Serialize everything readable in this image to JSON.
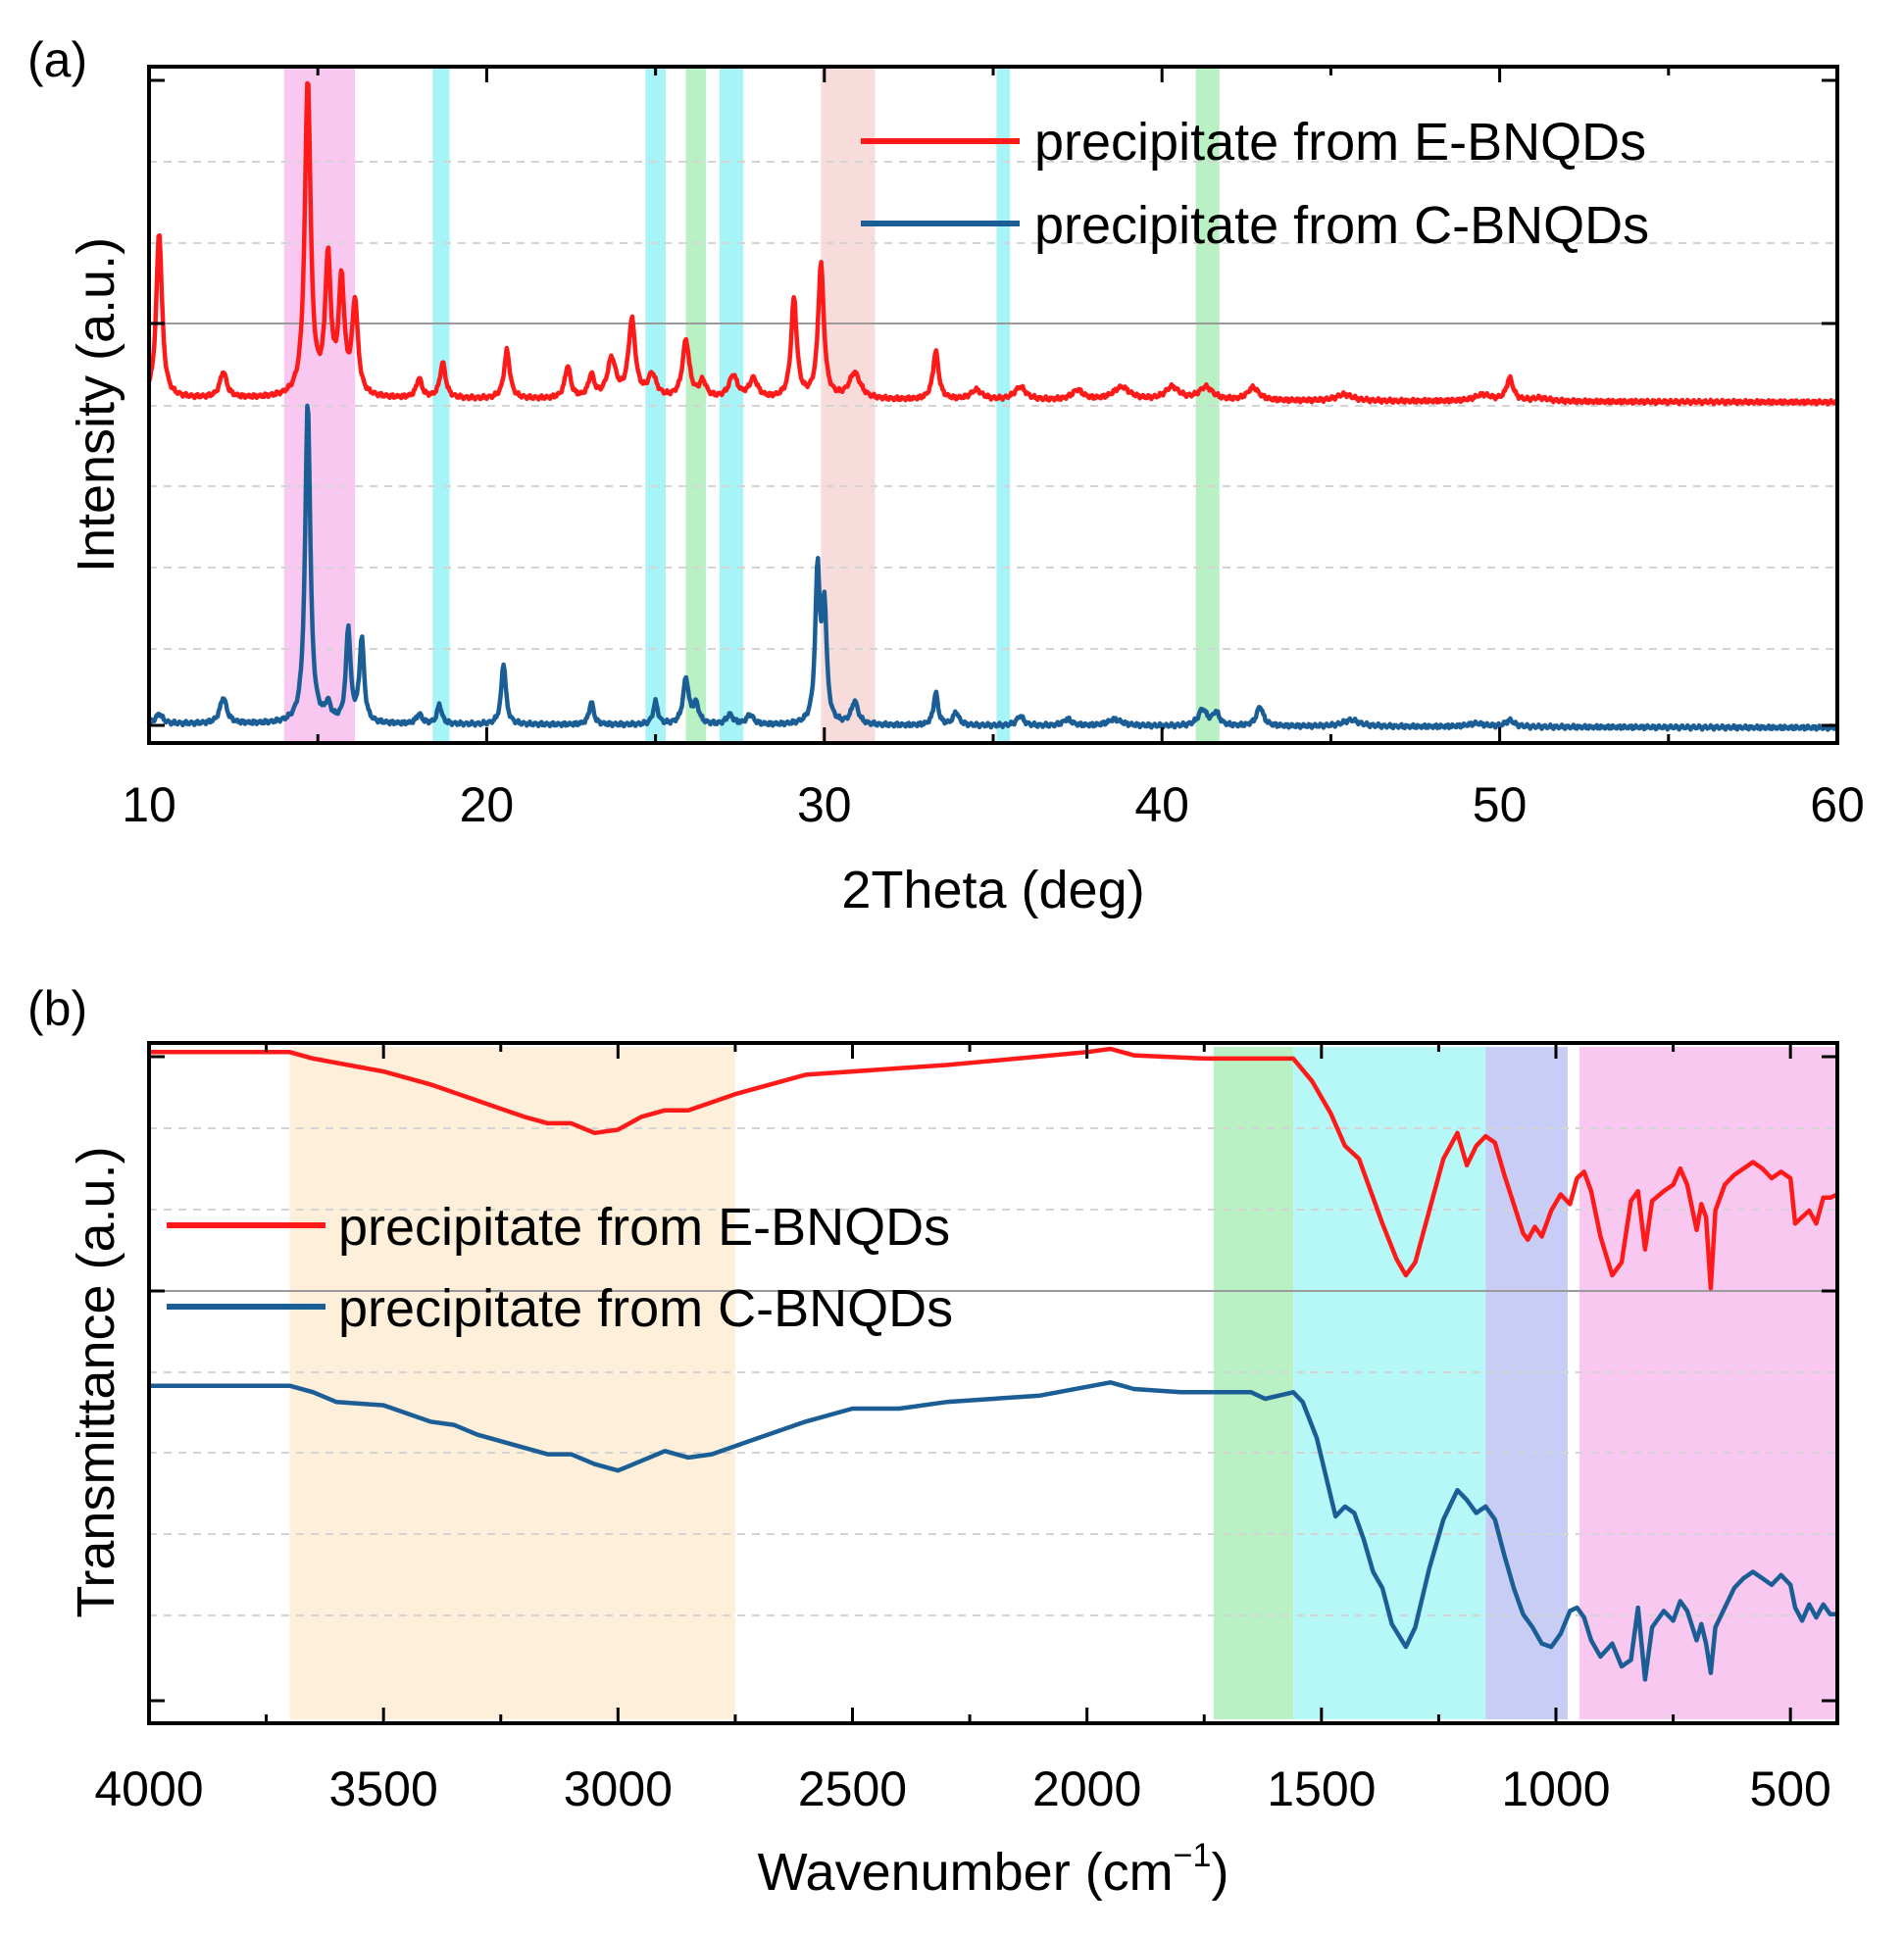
{
  "chart_data": [
    {
      "panel": "(a)",
      "type": "line",
      "xlabel": "2Theta (deg)",
      "ylabel": "Intensity (a.u.)",
      "xlim": [
        10,
        60
      ],
      "xticks": [
        10,
        20,
        30,
        40,
        50,
        60
      ],
      "grid": "dashed horizontal",
      "legend_position": "top-right",
      "highlight_bands": [
        {
          "from": 14.0,
          "to": 16.1,
          "color": "#f9c8f0"
        },
        {
          "from": 18.4,
          "to": 18.9,
          "color": "#a6f4f8"
        },
        {
          "from": 24.7,
          "to": 25.3,
          "color": "#a6f4f8"
        },
        {
          "from": 25.9,
          "to": 26.5,
          "color": "#b9f0c4"
        },
        {
          "from": 26.9,
          "to": 27.6,
          "color": "#a6f4f8"
        },
        {
          "from": 29.9,
          "to": 31.5,
          "color": "#f8dcdc"
        },
        {
          "from": 35.1,
          "to": 35.5,
          "color": "#a6f4f8"
        },
        {
          "from": 41.0,
          "to": 41.7,
          "color": "#b9f0c4"
        }
      ],
      "series": [
        {
          "name": "precipitate from E-BNQDs",
          "color": "#ff1a1a",
          "baseline": 0.02,
          "peaks": [
            [
              10.3,
              0.52,
              0.1
            ],
            [
              12.2,
              0.08,
              0.12
            ],
            [
              14.7,
              1.0,
              0.1
            ],
            [
              15.3,
              0.42,
              0.1
            ],
            [
              15.7,
              0.35,
              0.1
            ],
            [
              16.1,
              0.29,
              0.1
            ],
            [
              18.0,
              0.06,
              0.1
            ],
            [
              18.7,
              0.11,
              0.1
            ],
            [
              20.6,
              0.15,
              0.1
            ],
            [
              22.4,
              0.1,
              0.1
            ],
            [
              23.1,
              0.07,
              0.1
            ],
            [
              23.7,
              0.12,
              0.15
            ],
            [
              24.3,
              0.24,
              0.12
            ],
            [
              24.9,
              0.07,
              0.15
            ],
            [
              25.9,
              0.18,
              0.12
            ],
            [
              26.4,
              0.05,
              0.12
            ],
            [
              27.3,
              0.07,
              0.15
            ],
            [
              27.9,
              0.06,
              0.15
            ],
            [
              29.1,
              0.31,
              0.1
            ],
            [
              29.9,
              0.42,
              0.1
            ],
            [
              30.9,
              0.08,
              0.2
            ],
            [
              33.3,
              0.15,
              0.1
            ],
            [
              34.5,
              0.03,
              0.2
            ],
            [
              35.8,
              0.04,
              0.2
            ],
            [
              37.5,
              0.03,
              0.2
            ],
            [
              38.8,
              0.04,
              0.3
            ],
            [
              40.3,
              0.04,
              0.25
            ],
            [
              41.3,
              0.04,
              0.25
            ],
            [
              42.7,
              0.04,
              0.2
            ],
            [
              45.4,
              0.02,
              0.3
            ],
            [
              49.5,
              0.02,
              0.3
            ],
            [
              50.3,
              0.07,
              0.12
            ],
            [
              51.2,
              0.01,
              0.3
            ]
          ]
        },
        {
          "name": "precipitate from C-BNQDs",
          "color": "#1b5e96",
          "baseline": 0.02,
          "peaks": [
            [
              10.3,
              0.03,
              0.12
            ],
            [
              12.2,
              0.08,
              0.12
            ],
            [
              14.7,
              1.0,
              0.09
            ],
            [
              15.3,
              0.05,
              0.1
            ],
            [
              15.9,
              0.29,
              0.08
            ],
            [
              16.3,
              0.26,
              0.08
            ],
            [
              18.0,
              0.03,
              0.1
            ],
            [
              18.6,
              0.06,
              0.08
            ],
            [
              20.5,
              0.19,
              0.08
            ],
            [
              23.1,
              0.07,
              0.08
            ],
            [
              25.0,
              0.07,
              0.08
            ],
            [
              25.9,
              0.14,
              0.1
            ],
            [
              26.2,
              0.06,
              0.1
            ],
            [
              27.2,
              0.03,
              0.12
            ],
            [
              27.8,
              0.03,
              0.12
            ],
            [
              29.8,
              0.47,
              0.08
            ],
            [
              30.0,
              0.35,
              0.08
            ],
            [
              30.9,
              0.07,
              0.12
            ],
            [
              33.3,
              0.1,
              0.08
            ],
            [
              33.9,
              0.04,
              0.1
            ],
            [
              35.8,
              0.03,
              0.12
            ],
            [
              37.2,
              0.02,
              0.15
            ],
            [
              38.6,
              0.02,
              0.25
            ],
            [
              41.2,
              0.05,
              0.15
            ],
            [
              41.6,
              0.04,
              0.12
            ],
            [
              42.9,
              0.06,
              0.12
            ],
            [
              45.6,
              0.02,
              0.3
            ],
            [
              49.3,
              0.01,
              0.3
            ],
            [
              50.3,
              0.02,
              0.15
            ]
          ]
        }
      ]
    },
    {
      "panel": "(b)",
      "type": "line",
      "xlabel": "Wavenumber (cm",
      "xlabel_superscript": "−1",
      "xlabel_close": ")",
      "ylabel": "Transmittance (a.u.)",
      "xlim": [
        4000,
        400
      ],
      "xticks": [
        4000,
        3500,
        3000,
        2500,
        2000,
        1500,
        1000,
        500
      ],
      "grid": "dashed horizontal",
      "legend_position": "middle-left",
      "highlight_bands": [
        {
          "from": 3700,
          "to": 2750,
          "color": "#fdefd9"
        },
        {
          "from": 1730,
          "to": 1560,
          "color": "#b9f0c4"
        },
        {
          "from": 1560,
          "to": 1150,
          "color": "#b6f8f8"
        },
        {
          "from": 1150,
          "to": 975,
          "color": "#c8cdf6"
        },
        {
          "from": 950,
          "to": 400,
          "color": "#f9c8f0"
        }
      ],
      "series": [
        {
          "name": "precipitate from E-BNQDs",
          "color": "#ff1a1a",
          "points": [
            [
              4000,
              0.99
            ],
            [
              3700,
              0.99
            ],
            [
              3650,
              0.97
            ],
            [
              3500,
              0.93
            ],
            [
              3400,
              0.89
            ],
            [
              3300,
              0.84
            ],
            [
              3200,
              0.79
            ],
            [
              3150,
              0.77
            ],
            [
              3100,
              0.77
            ],
            [
              3050,
              0.74
            ],
            [
              3000,
              0.75
            ],
            [
              2950,
              0.79
            ],
            [
              2900,
              0.81
            ],
            [
              2850,
              0.81
            ],
            [
              2750,
              0.86
            ],
            [
              2600,
              0.92
            ],
            [
              2400,
              0.94
            ],
            [
              2300,
              0.95
            ],
            [
              2000,
              0.99
            ],
            [
              1950,
              1.0
            ],
            [
              1900,
              0.98
            ],
            [
              1750,
              0.97
            ],
            [
              1650,
              0.97
            ],
            [
              1600,
              0.97
            ],
            [
              1560,
              0.97
            ],
            [
              1520,
              0.9
            ],
            [
              1480,
              0.8
            ],
            [
              1450,
              0.7
            ],
            [
              1420,
              0.66
            ],
            [
              1400,
              0.58
            ],
            [
              1370,
              0.46
            ],
            [
              1340,
              0.35
            ],
            [
              1320,
              0.3
            ],
            [
              1300,
              0.34
            ],
            [
              1270,
              0.5
            ],
            [
              1240,
              0.66
            ],
            [
              1210,
              0.74
            ],
            [
              1190,
              0.64
            ],
            [
              1170,
              0.7
            ],
            [
              1150,
              0.73
            ],
            [
              1130,
              0.71
            ],
            [
              1110,
              0.61
            ],
            [
              1090,
              0.52
            ],
            [
              1070,
              0.43
            ],
            [
              1060,
              0.41
            ],
            [
              1045,
              0.45
            ],
            [
              1030,
              0.42
            ],
            [
              1010,
              0.5
            ],
            [
              990,
              0.55
            ],
            [
              970,
              0.52
            ],
            [
              955,
              0.6
            ],
            [
              940,
              0.62
            ],
            [
              925,
              0.56
            ],
            [
              905,
              0.42
            ],
            [
              880,
              0.3
            ],
            [
              860,
              0.34
            ],
            [
              840,
              0.53
            ],
            [
              825,
              0.56
            ],
            [
              810,
              0.38
            ],
            [
              795,
              0.53
            ],
            [
              770,
              0.56
            ],
            [
              750,
              0.58
            ],
            [
              735,
              0.63
            ],
            [
              720,
              0.58
            ],
            [
              700,
              0.44
            ],
            [
              690,
              0.52
            ],
            [
              680,
              0.48
            ],
            [
              670,
              0.26
            ],
            [
              660,
              0.5
            ],
            [
              640,
              0.58
            ],
            [
              620,
              0.61
            ],
            [
              600,
              0.63
            ],
            [
              580,
              0.65
            ],
            [
              560,
              0.63
            ],
            [
              540,
              0.6
            ],
            [
              520,
              0.62
            ],
            [
              500,
              0.6
            ],
            [
              490,
              0.46
            ],
            [
              475,
              0.48
            ],
            [
              460,
              0.5
            ],
            [
              445,
              0.46
            ],
            [
              430,
              0.54
            ],
            [
              415,
              0.54
            ],
            [
              400,
              0.55
            ]
          ]
        },
        {
          "name": "precipitate from C-BNQDs",
          "color": "#1b5e96",
          "points": [
            [
              4000,
              0.98
            ],
            [
              3700,
              0.98
            ],
            [
              3650,
              0.96
            ],
            [
              3600,
              0.93
            ],
            [
              3500,
              0.92
            ],
            [
              3400,
              0.87
            ],
            [
              3350,
              0.86
            ],
            [
              3300,
              0.83
            ],
            [
              3200,
              0.79
            ],
            [
              3150,
              0.77
            ],
            [
              3100,
              0.77
            ],
            [
              3050,
              0.74
            ],
            [
              3000,
              0.72
            ],
            [
              2950,
              0.75
            ],
            [
              2900,
              0.78
            ],
            [
              2850,
              0.76
            ],
            [
              2800,
              0.77
            ],
            [
              2700,
              0.82
            ],
            [
              2600,
              0.87
            ],
            [
              2500,
              0.91
            ],
            [
              2400,
              0.91
            ],
            [
              2300,
              0.93
            ],
            [
              2100,
              0.95
            ],
            [
              1950,
              0.99
            ],
            [
              1900,
              0.97
            ],
            [
              1800,
              0.96
            ],
            [
              1700,
              0.96
            ],
            [
              1650,
              0.96
            ],
            [
              1620,
              0.94
            ],
            [
              1560,
              0.96
            ],
            [
              1540,
              0.93
            ],
            [
              1510,
              0.82
            ],
            [
              1490,
              0.7
            ],
            [
              1470,
              0.58
            ],
            [
              1450,
              0.61
            ],
            [
              1430,
              0.59
            ],
            [
              1410,
              0.51
            ],
            [
              1390,
              0.41
            ],
            [
              1370,
              0.36
            ],
            [
              1350,
              0.25
            ],
            [
              1320,
              0.18
            ],
            [
              1300,
              0.24
            ],
            [
              1270,
              0.42
            ],
            [
              1240,
              0.57
            ],
            [
              1210,
              0.66
            ],
            [
              1190,
              0.63
            ],
            [
              1170,
              0.59
            ],
            [
              1150,
              0.61
            ],
            [
              1130,
              0.57
            ],
            [
              1110,
              0.46
            ],
            [
              1090,
              0.36
            ],
            [
              1070,
              0.28
            ],
            [
              1050,
              0.24
            ],
            [
              1030,
              0.19
            ],
            [
              1010,
              0.18
            ],
            [
              990,
              0.22
            ],
            [
              970,
              0.29
            ],
            [
              955,
              0.3
            ],
            [
              940,
              0.27
            ],
            [
              925,
              0.2
            ],
            [
              905,
              0.15
            ],
            [
              880,
              0.19
            ],
            [
              860,
              0.12
            ],
            [
              840,
              0.14
            ],
            [
              825,
              0.3
            ],
            [
              810,
              0.08
            ],
            [
              795,
              0.24
            ],
            [
              770,
              0.29
            ],
            [
              750,
              0.26
            ],
            [
              735,
              0.32
            ],
            [
              720,
              0.29
            ],
            [
              700,
              0.2
            ],
            [
              690,
              0.25
            ],
            [
              680,
              0.19
            ],
            [
              670,
              0.1
            ],
            [
              660,
              0.24
            ],
            [
              640,
              0.3
            ],
            [
              620,
              0.36
            ],
            [
              600,
              0.39
            ],
            [
              580,
              0.41
            ],
            [
              560,
              0.39
            ],
            [
              540,
              0.37
            ],
            [
              520,
              0.4
            ],
            [
              500,
              0.37
            ],
            [
              490,
              0.3
            ],
            [
              475,
              0.26
            ],
            [
              460,
              0.31
            ],
            [
              445,
              0.27
            ],
            [
              430,
              0.31
            ],
            [
              415,
              0.28
            ],
            [
              400,
              0.28
            ]
          ]
        }
      ]
    }
  ]
}
